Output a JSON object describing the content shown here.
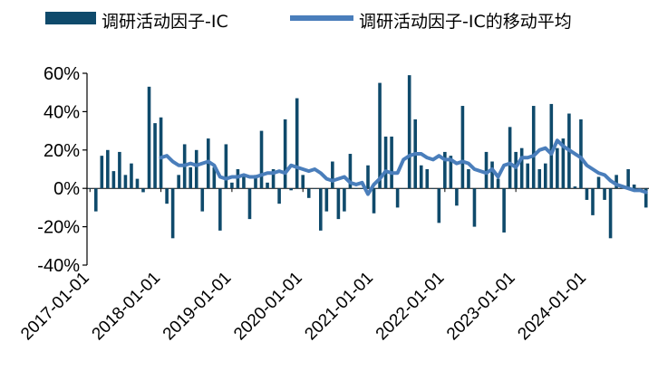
{
  "chart_data": {
    "type": "bar+line",
    "title": "",
    "xlabel": "",
    "ylabel": "",
    "ylim": [
      -0.4,
      0.6
    ],
    "yticks": [
      -0.4,
      -0.2,
      0.0,
      0.2,
      0.4,
      0.6
    ],
    "ytick_labels": [
      "-40%",
      "-20%",
      "0%",
      "20%",
      "40%",
      "60%"
    ],
    "xtick_labels": [
      "2017-01-01",
      "2018-01-01",
      "2019-01-01",
      "2020-01-01",
      "2021-01-01",
      "2022-01-01",
      "2023-01-01",
      "2024-01-01"
    ],
    "x_start": "2017-01",
    "frequency": "monthly",
    "legend_position": "top",
    "colors": {
      "bar": "#0f4a6b",
      "line": "#4a7ebb"
    },
    "series": [
      {
        "name": "调研活动因子-IC",
        "type": "bar",
        "values": [
          0.0,
          -0.12,
          0.17,
          0.2,
          0.09,
          0.19,
          0.07,
          0.13,
          0.05,
          -0.02,
          0.53,
          0.34,
          0.37,
          -0.08,
          -0.26,
          0.07,
          0.23,
          0.11,
          0.2,
          -0.12,
          0.26,
          0.11,
          -0.22,
          0.23,
          0.03,
          0.1,
          0.06,
          -0.16,
          0.07,
          0.3,
          0.03,
          0.1,
          -0.08,
          0.36,
          -0.01,
          0.47,
          0.07,
          -0.05,
          0.0,
          -0.22,
          -0.12,
          0.14,
          -0.16,
          -0.12,
          0.18,
          0.0,
          0.0,
          0.12,
          -0.13,
          0.55,
          0.27,
          0.27,
          -0.1,
          0.0,
          0.59,
          0.36,
          0.12,
          0.1,
          0.0,
          -0.18,
          0.19,
          0.17,
          -0.09,
          0.43,
          0.1,
          -0.2,
          0.0,
          0.19,
          0.14,
          0.05,
          -0.23,
          0.32,
          0.19,
          0.21,
          0.13,
          0.43,
          0.1,
          0.13,
          0.44,
          0.21,
          0.26,
          0.39,
          0.01,
          0.36,
          -0.06,
          -0.14,
          0.06,
          -0.06,
          -0.26,
          0.07,
          0.01,
          0.1,
          0.02,
          -0.01,
          -0.1
        ]
      },
      {
        "name": "调研活动因子-IC的移动平均",
        "type": "line",
        "values": [
          null,
          null,
          null,
          null,
          null,
          null,
          null,
          null,
          null,
          null,
          null,
          null,
          0.16,
          0.17,
          0.14,
          0.12,
          0.12,
          0.13,
          0.12,
          0.13,
          0.14,
          0.12,
          0.06,
          0.05,
          0.06,
          0.06,
          0.07,
          0.06,
          0.06,
          0.07,
          0.08,
          0.08,
          0.09,
          0.08,
          0.12,
          0.11,
          0.1,
          0.09,
          0.1,
          0.08,
          0.05,
          0.04,
          0.05,
          0.06,
          0.03,
          0.02,
          0.03,
          -0.03,
          0.02,
          0.05,
          0.09,
          0.08,
          0.08,
          0.15,
          0.17,
          0.18,
          0.18,
          0.16,
          0.15,
          0.17,
          0.15,
          0.15,
          0.13,
          0.14,
          0.13,
          0.1,
          0.09,
          0.08,
          0.1,
          0.06,
          0.12,
          0.13,
          0.11,
          0.16,
          0.16,
          0.17,
          0.2,
          0.21,
          0.18,
          0.25,
          0.22,
          0.2,
          0.18,
          0.16,
          0.12,
          0.1,
          0.08,
          0.07,
          0.04,
          0.02,
          0.01,
          0.0,
          -0.01,
          -0.01,
          -0.02
        ]
      }
    ]
  }
}
